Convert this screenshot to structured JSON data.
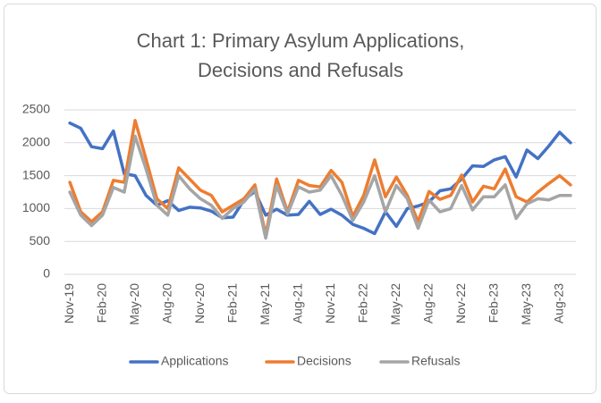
{
  "chart_data": {
    "type": "line",
    "title": [
      "Chart 1: Primary Asylum Applications,",
      "Decisions and Refusals"
    ],
    "categories": [
      "Nov-19",
      null,
      null,
      "Feb-20",
      null,
      null,
      "May-20",
      null,
      null,
      "Aug-20",
      null,
      null,
      "Nov-20",
      null,
      null,
      "Feb-21",
      null,
      null,
      "May-21",
      null,
      null,
      "Aug-21",
      null,
      null,
      "Nov-21",
      null,
      null,
      "Feb-22",
      null,
      null,
      "May-22",
      null,
      null,
      "Aug-22",
      null,
      null,
      "Nov-22",
      null,
      null,
      "Feb-23",
      null,
      null,
      "May-23",
      null,
      null,
      "Aug-23",
      null
    ],
    "series": [
      {
        "name": "Applications",
        "color": "#4472c4",
        "values": [
          2300,
          2220,
          1940,
          1910,
          2180,
          1530,
          1500,
          1200,
          1050,
          1120,
          970,
          1020,
          1010,
          960,
          860,
          870,
          1130,
          1260,
          900,
          990,
          900,
          910,
          1110,
          910,
          990,
          900,
          760,
          700,
          620,
          950,
          730,
          1000,
          1040,
          1100,
          1270,
          1300,
          1450,
          1650,
          1640,
          1740,
          1790,
          1480,
          1890,
          1760,
          1950,
          2160,
          2000
        ]
      },
      {
        "name": "Decisions",
        "color": "#ed7d31",
        "values": [
          1400,
          950,
          800,
          950,
          1430,
          1400,
          2340,
          1750,
          1150,
          1000,
          1620,
          1450,
          1280,
          1200,
          950,
          1050,
          1150,
          1360,
          600,
          1450,
          950,
          1430,
          1350,
          1330,
          1580,
          1400,
          880,
          1200,
          1740,
          1180,
          1480,
          1200,
          800,
          1260,
          1140,
          1200,
          1510,
          1100,
          1340,
          1300,
          1600,
          1180,
          1100,
          1250,
          1380,
          1500,
          1360
        ]
      },
      {
        "name": "Refusals",
        "color": "#a5a5a5",
        "values": [
          1250,
          900,
          740,
          900,
          1320,
          1250,
          2100,
          1600,
          1050,
          900,
          1500,
          1300,
          1150,
          1050,
          850,
          1000,
          1100,
          1300,
          550,
          1350,
          920,
          1330,
          1250,
          1280,
          1500,
          1200,
          820,
          1100,
          1500,
          950,
          1350,
          1150,
          700,
          1130,
          950,
          1000,
          1350,
          980,
          1180,
          1180,
          1360,
          850,
          1070,
          1150,
          1130,
          1200,
          1200
        ]
      }
    ],
    "ylim": [
      0,
      2500
    ],
    "yticks": [
      0,
      500,
      1000,
      1500,
      2000,
      2500
    ],
    "grid": true,
    "legend": "bottom"
  }
}
